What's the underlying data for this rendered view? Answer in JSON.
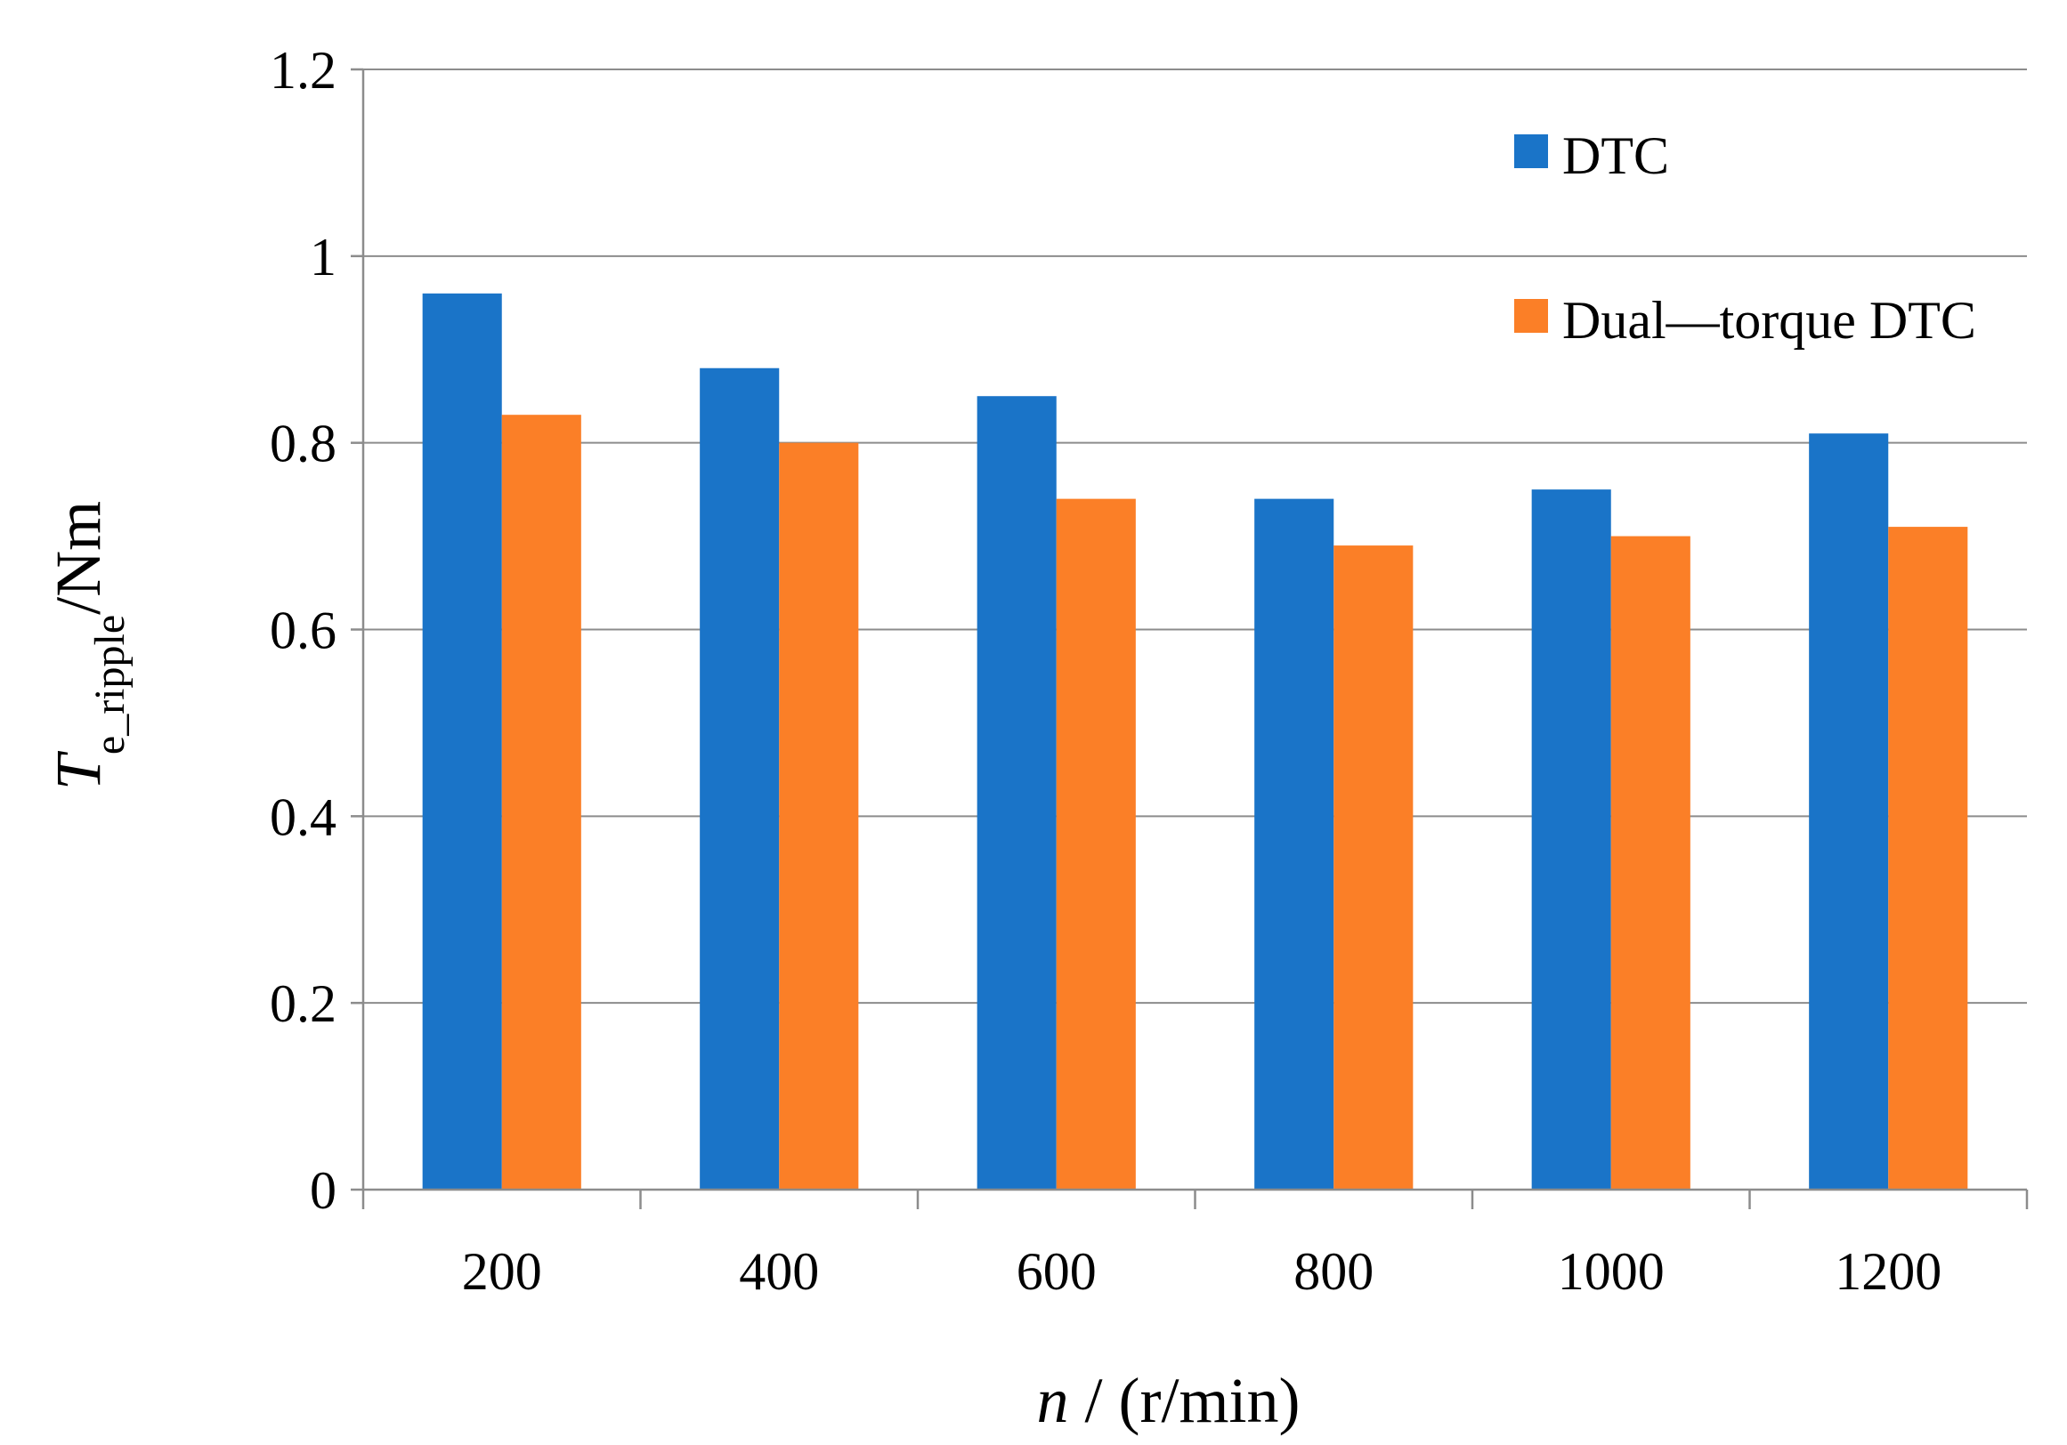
{
  "chart_data": {
    "type": "bar",
    "title": "",
    "categories": [
      "200",
      "400",
      "600",
      "800",
      "1000",
      "1200"
    ],
    "series": [
      {
        "name": "DTC",
        "color": "#1a74c8",
        "values": [
          0.96,
          0.88,
          0.85,
          0.74,
          0.75,
          0.81
        ]
      },
      {
        "name": "Dual—torque DTC",
        "color": "#fb7f27",
        "values": [
          0.83,
          0.8,
          0.74,
          0.69,
          0.7,
          0.71
        ]
      }
    ],
    "ylim": [
      0,
      1.2
    ],
    "yticks": [
      0,
      0.2,
      0.4,
      0.6,
      0.8,
      1,
      1.2
    ],
    "ytick_labels": [
      "0",
      "0.2",
      "0.4",
      "0.6",
      "0.8",
      "1",
      "1.2"
    ],
    "grid": true,
    "legend_position": "top-right",
    "xlabel": {
      "var": "n",
      "rest": " / (r/min)"
    },
    "ylabel": {
      "var": "T",
      "sub": "e_ripple",
      "rest": "/Nm"
    }
  }
}
